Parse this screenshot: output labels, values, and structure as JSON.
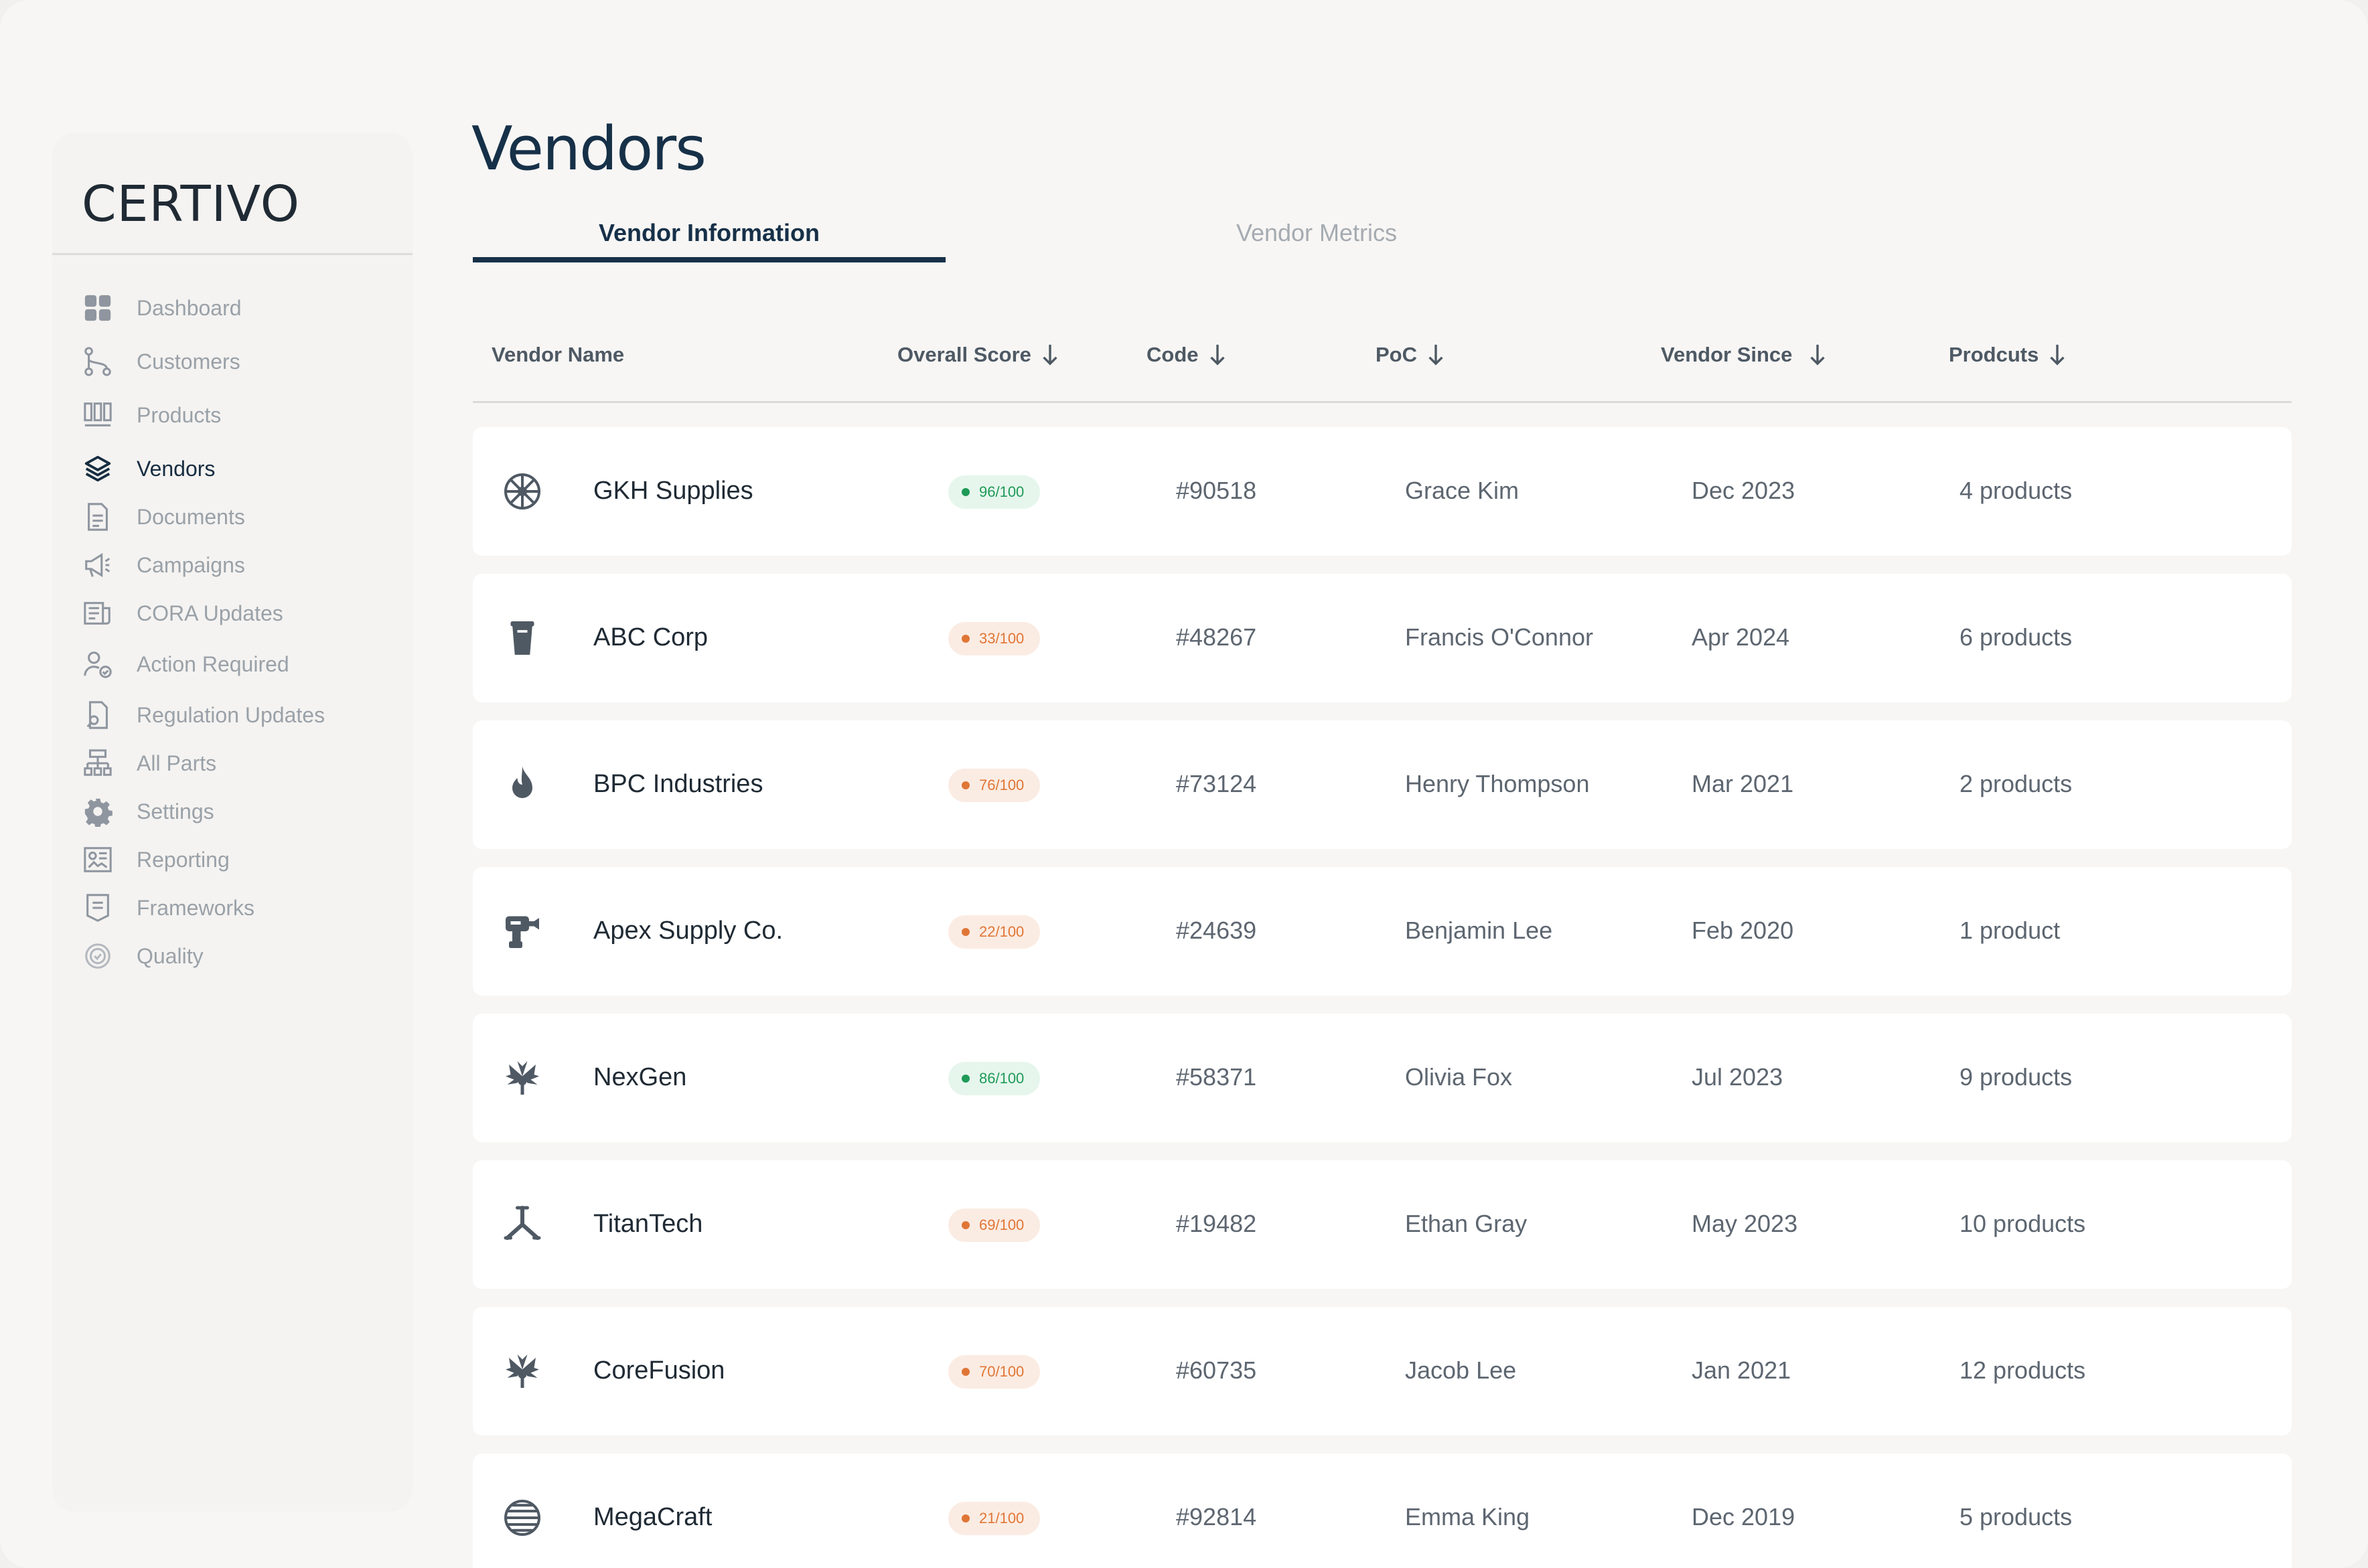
{
  "app": {
    "brand": "CERTIVO",
    "page_title": "Vendors"
  },
  "sidebar": {
    "items": [
      {
        "label": "Dashboard",
        "icon": "grid-icon",
        "active": false
      },
      {
        "label": "Customers",
        "icon": "git-branch-icon",
        "active": false
      },
      {
        "label": "Products",
        "icon": "barcode-icon",
        "active": false
      },
      {
        "label": "Vendors",
        "icon": "layers-icon",
        "active": true
      },
      {
        "label": "Documents",
        "icon": "document-icon",
        "active": false
      },
      {
        "label": "Campaigns",
        "icon": "megaphone-icon",
        "active": false
      },
      {
        "label": "CORA Updates",
        "icon": "newspaper-icon",
        "active": false
      },
      {
        "label": "Action Required",
        "icon": "user-check-icon",
        "active": false
      },
      {
        "label": "Regulation Updates",
        "icon": "file-search-icon",
        "active": false
      },
      {
        "label": "All Parts",
        "icon": "hierarchy-icon",
        "active": false
      },
      {
        "label": "Settings",
        "icon": "gear-icon",
        "active": false
      },
      {
        "label": "Reporting",
        "icon": "report-icon",
        "active": false
      },
      {
        "label": "Frameworks",
        "icon": "framework-icon",
        "active": false
      },
      {
        "label": "Quality",
        "icon": "quality-icon",
        "active": false
      }
    ]
  },
  "tabs": [
    {
      "label": "Vendor Information",
      "active": true
    },
    {
      "label": "Vendor Metrics",
      "active": false
    }
  ],
  "table": {
    "columns": [
      {
        "label": "Vendor Name",
        "sortable": false
      },
      {
        "label": "Overall Score",
        "sortable": true
      },
      {
        "label": "Code",
        "sortable": true
      },
      {
        "label": "PoC",
        "sortable": true
      },
      {
        "label": "Vendor Since",
        "sortable": true
      },
      {
        "label": "Prodcuts",
        "sortable": true
      }
    ],
    "rows": [
      {
        "icon": "wheel-logo-icon",
        "name": "GKH Supplies",
        "score": "96/100",
        "status": "good",
        "code": "#90518",
        "poc": "Grace Kim",
        "since": "Dec 2023",
        "products": "4 products"
      },
      {
        "icon": "cup-logo-icon",
        "name": "ABC Corp",
        "score": "33/100",
        "status": "bad",
        "code": "#48267",
        "poc": "Francis O'Connor",
        "since": "Apr 2024",
        "products": "6 products"
      },
      {
        "icon": "flame-logo-icon",
        "name": "BPC Industries",
        "score": "76/100",
        "status": "bad",
        "code": "#73124",
        "poc": "Henry Thompson",
        "since": "Mar 2021",
        "products": "2 products"
      },
      {
        "icon": "drill-logo-icon",
        "name": "Apex Supply Co.",
        "score": "22/100",
        "status": "bad",
        "code": "#24639",
        "poc": "Benjamin Lee",
        "since": "Feb 2020",
        "products": "1 product"
      },
      {
        "icon": "palm-logo-icon",
        "name": "NexGen",
        "score": "86/100",
        "status": "good",
        "code": "#58371",
        "poc": "Olivia Fox",
        "since": "Jul 2023",
        "products": "9 products"
      },
      {
        "icon": "tripod-logo-icon",
        "name": "TitanTech",
        "score": "69/100",
        "status": "bad",
        "code": "#19482",
        "poc": "Ethan Gray",
        "since": "May 2023",
        "products": "10 products"
      },
      {
        "icon": "palm-logo-icon",
        "name": "CoreFusion",
        "score": "70/100",
        "status": "bad",
        "code": "#60735",
        "poc": "Jacob Lee",
        "since": "Jan 2021",
        "products": "12 products"
      },
      {
        "icon": "globe-logo-icon",
        "name": "MegaCraft",
        "score": "21/100",
        "status": "bad",
        "code": "#92814",
        "poc": "Emma King",
        "since": "Dec 2019",
        "products": "5 products"
      }
    ]
  },
  "colors": {
    "primary": "#163048",
    "good": "#1f9a57",
    "bad": "#e07636"
  }
}
